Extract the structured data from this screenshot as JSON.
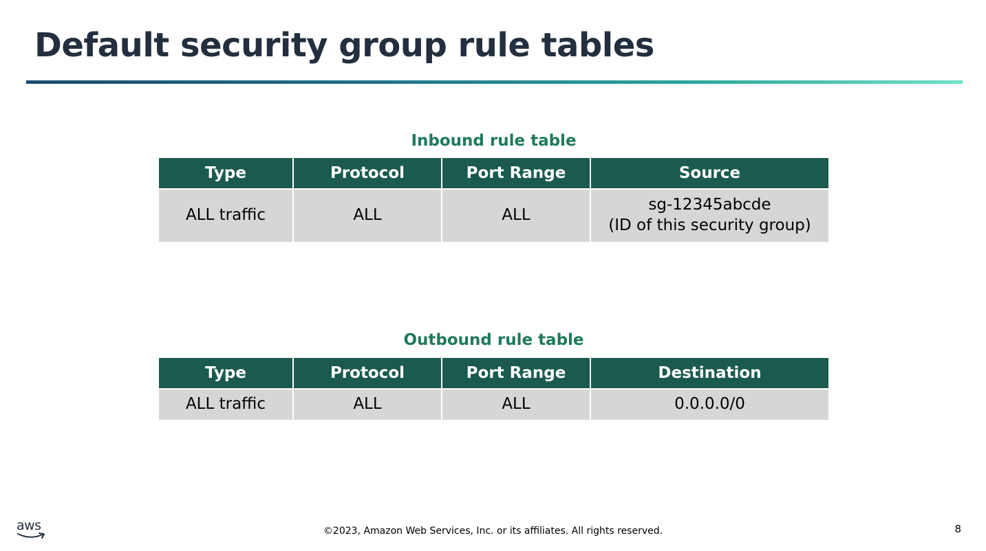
{
  "slide": {
    "title": "Default security group rule tables",
    "page_number": "8"
  },
  "inbound": {
    "caption": "Inbound rule table",
    "headers": [
      "Type",
      "Protocol",
      "Port Range",
      "Source"
    ],
    "rows": [
      {
        "type": "ALL traffic",
        "protocol": "ALL",
        "port_range": "ALL",
        "source_line1": "sg-12345abcde",
        "source_line2": "(ID of this security group)"
      }
    ]
  },
  "outbound": {
    "caption": "Outbound rule table",
    "headers": [
      "Type",
      "Protocol",
      "Port Range",
      "Destination"
    ],
    "rows": [
      {
        "type": "ALL traffic",
        "protocol": "ALL",
        "port_range": "ALL",
        "destination": "0.0.0.0/0"
      }
    ]
  },
  "footer": {
    "logo_text": "aws",
    "copyright": "©2023, Amazon Web Services, Inc. or its affiliates. All rights reserved."
  },
  "colors": {
    "title": "#232f3e",
    "caption": "#1f7a5a",
    "header_bg": "#1b5a4e",
    "cell_bg": "#d5d7d6"
  }
}
